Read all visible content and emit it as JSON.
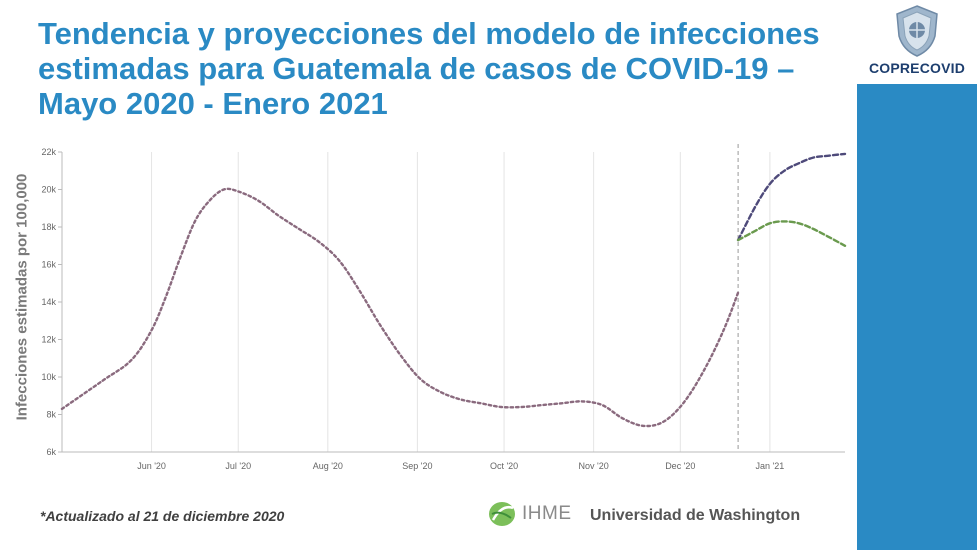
{
  "slide": {
    "title": "Tendencia y proyecciones del modelo de infecciones estimadas para Guatemala de casos de COVID-19 – Mayo 2020 - Enero 2021",
    "footnote": "*Actualizado al 21 de diciembre 2020",
    "source_logo_text": "IHME",
    "source_org": "Universidad de Washington",
    "brand_logo_text": "COPRECOVID",
    "colors": {
      "title": "#2a8ac4",
      "sidebar": "#2a8ac4",
      "historical": "#8a6a7e",
      "projection_high": "#4e4a7a",
      "projection_low": "#6a9a4e"
    }
  },
  "chart_data": {
    "type": "line",
    "ylabel": "Infecciones estimadas por 100,000",
    "xlabel": "",
    "ylim": [
      6000,
      22000
    ],
    "yticks": [
      6000,
      8000,
      10000,
      12000,
      14000,
      16000,
      18000,
      20000,
      22000
    ],
    "ytick_labels": [
      "6k",
      "8k",
      "10k",
      "12k",
      "14k",
      "16k",
      "18k",
      "20k",
      "22k"
    ],
    "xlim": [
      "2020-05-01",
      "2021-01-27"
    ],
    "xticks": [
      "2020-06-01",
      "2020-07-01",
      "2020-08-01",
      "2020-09-01",
      "2020-10-01",
      "2020-11-01",
      "2020-12-01",
      "2021-01-01"
    ],
    "xtick_labels": [
      "Jun '20",
      "Jul '20",
      "Aug '20",
      "Sep '20",
      "Oct '20",
      "Nov '20",
      "Dec '20",
      "Jan '21"
    ],
    "grid": "vertical",
    "divider_date": "2020-12-21",
    "series": [
      {
        "style": "dotted",
        "color": "#8a6a7e",
        "x": [
          "2020-05-01",
          "2020-05-15",
          "2020-05-25",
          "2020-06-01",
          "2020-06-06",
          "2020-06-11",
          "2020-06-16",
          "2020-06-21",
          "2020-06-26",
          "2020-07-01",
          "2020-07-08",
          "2020-07-15",
          "2020-07-22",
          "2020-07-29",
          "2020-08-05",
          "2020-08-12",
          "2020-08-19",
          "2020-08-26",
          "2020-09-02",
          "2020-09-09",
          "2020-09-16",
          "2020-09-23",
          "2020-09-30",
          "2020-10-07",
          "2020-10-14",
          "2020-10-21",
          "2020-10-28",
          "2020-11-04",
          "2020-11-11",
          "2020-11-18",
          "2020-11-25",
          "2020-12-02",
          "2020-12-09",
          "2020-12-16",
          "2020-12-21"
        ],
        "values": [
          8300,
          9800,
          10900,
          12500,
          14300,
          16400,
          18300,
          19400,
          20000,
          19900,
          19400,
          18600,
          17900,
          17200,
          16200,
          14600,
          12800,
          11200,
          9900,
          9200,
          8800,
          8600,
          8400,
          8400,
          8500,
          8600,
          8700,
          8500,
          7800,
          7400,
          7600,
          8600,
          10300,
          12500,
          14500
        ]
      },
      {
        "style": "dashed",
        "color": "#4e4a7a",
        "x": [
          "2020-12-21",
          "2020-12-27",
          "2021-01-01",
          "2021-01-06",
          "2021-01-11",
          "2021-01-16",
          "2021-01-21",
          "2021-01-27"
        ],
        "values": [
          17300,
          19100,
          20300,
          21000,
          21400,
          21700,
          21800,
          21900
        ]
      },
      {
        "style": "dashed",
        "color": "#6a9a4e",
        "x": [
          "2020-12-21",
          "2020-12-27",
          "2021-01-01",
          "2021-01-06",
          "2021-01-11",
          "2021-01-16",
          "2021-01-21",
          "2021-01-27"
        ],
        "values": [
          17300,
          17800,
          18200,
          18300,
          18200,
          17900,
          17500,
          17000
        ]
      }
    ]
  }
}
